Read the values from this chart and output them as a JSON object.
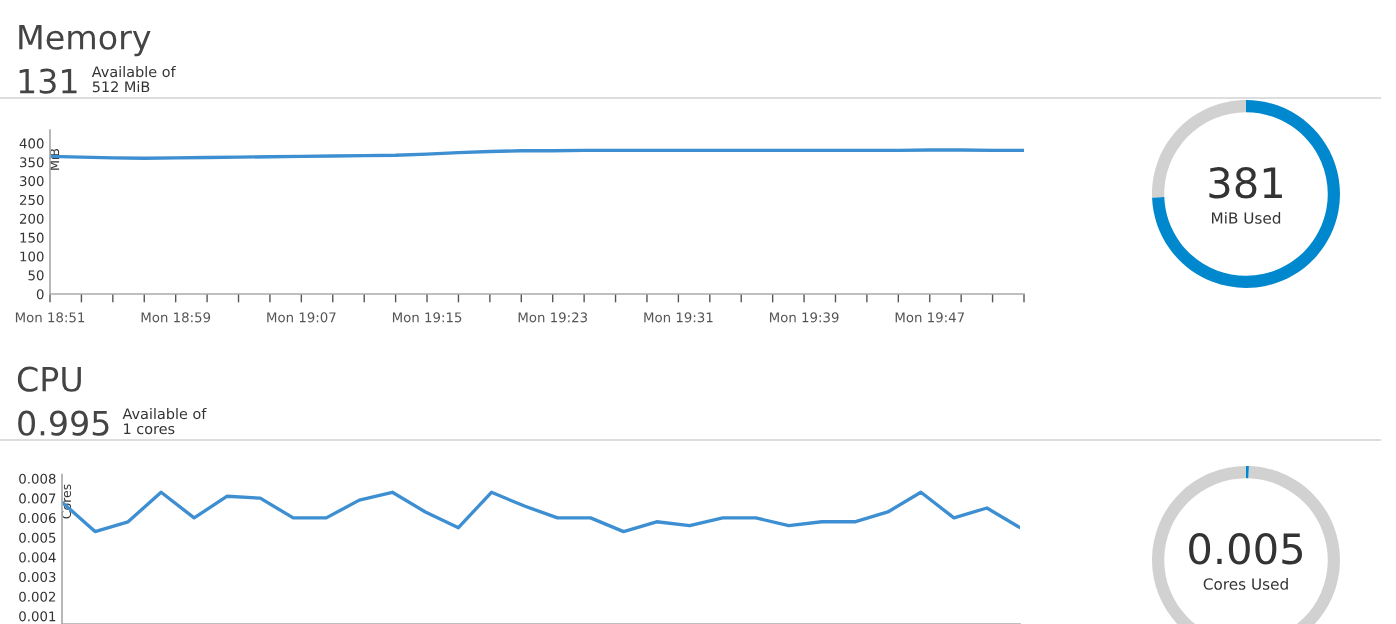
{
  "chart_data": [
    {
      "type": "line",
      "title": "Memory",
      "subtitle": "131",
      "annotations": [
        "Available of\n512 MiB"
      ],
      "ylabel": "MiB",
      "color": "#3d8fd1",
      "marker": "none",
      "line_style": "solid",
      "grid": false,
      "legend": false,
      "categories": [
        "Mon 18:51",
        null,
        null,
        null,
        "Mon 18:59",
        null,
        null,
        null,
        "Mon 19:07",
        null,
        null,
        null,
        "Mon 19:15",
        null,
        null,
        null,
        "Mon 19:23",
        null,
        null,
        null,
        "Mon 19:31",
        null,
        null,
        null,
        "Mon 19:39",
        null,
        null,
        null,
        "Mon 19:47",
        null,
        null,
        null
      ],
      "values": [
        365,
        363,
        361,
        360,
        361,
        362,
        363,
        364,
        365,
        366,
        367,
        368,
        371,
        375,
        378,
        380,
        380,
        381,
        381,
        381,
        381,
        381,
        381,
        381,
        381,
        381,
        381,
        381,
        382,
        382,
        381,
        381
      ],
      "ylim": [
        0,
        435
      ],
      "yticks": [
        0,
        50,
        100,
        150,
        200,
        250,
        300,
        350,
        400
      ]
    },
    {
      "type": "donut",
      "categories": [
        null,
        null
      ],
      "values": [
        74.4,
        25.6
      ],
      "colors": [
        "#0088ce",
        "#d1d1d1"
      ],
      "annotations": [
        "381",
        "MiB Used"
      ]
    },
    {
      "type": "line",
      "title": "CPU",
      "subtitle": "0.995",
      "annotations": [
        "Available of\n1 cores"
      ],
      "ylabel": "Cores",
      "color": "#3d8fd1",
      "marker": "none",
      "line_style": "solid",
      "grid": false,
      "legend": false,
      "tick_labels": "y",
      "categories": [
        null,
        null,
        null,
        null,
        null,
        null,
        null,
        null,
        null,
        null,
        null,
        null,
        null,
        null,
        null,
        null,
        null,
        null,
        null,
        null,
        null,
        null,
        null,
        null,
        null,
        null,
        null,
        null,
        null,
        null
      ],
      "values": [
        0.0068,
        0.0053,
        0.0058,
        0.0073,
        0.006,
        0.0071,
        0.007,
        0.006,
        0.006,
        0.0069,
        0.0073,
        0.0063,
        0.0055,
        0.0073,
        0.0066,
        0.006,
        0.006,
        0.0053,
        0.0058,
        0.0056,
        0.006,
        0.006,
        0.0056,
        0.0058,
        0.0058,
        0.0063,
        0.0073,
        0.006,
        0.0065,
        0.0055
      ],
      "ylim": [
        0.0006,
        0.0082
      ],
      "yticks": [
        0.001,
        0.002,
        0.003,
        0.004,
        0.005,
        0.006,
        0.007,
        0.008
      ]
    },
    {
      "type": "donut",
      "categories": [
        null,
        null
      ],
      "values": [
        0.005,
        0.995
      ],
      "colors": [
        "#0088ce",
        "#d1d1d1"
      ],
      "annotations": [
        "0.005",
        "Cores Used"
      ]
    }
  ]
}
